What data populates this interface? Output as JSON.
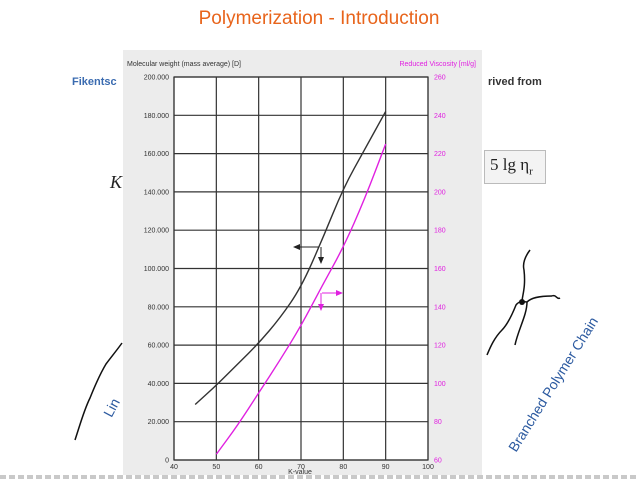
{
  "slide": {
    "title": "Polymerization - Introduction",
    "left_text_fragment": "Fikentsc",
    "right_text_fragment": "rived  from",
    "formula_left_fragment": "K",
    "formula_right_fragment": "5 lg η",
    "formula_right_subscript": "r",
    "left_diagram_label_fragment": "Lin",
    "right_diagram_label": "Branched Polymer Chain"
  },
  "colors": {
    "title": "#e8641b",
    "text_blue": "#3a6bb0",
    "molecular_weight_line": "#333333",
    "viscosity_line": "#e020e0",
    "grid": "#333333"
  },
  "chart_data": {
    "type": "line",
    "xlabel": "K-value",
    "ylabel_left": "Molecular weight (mass average) [D]",
    "ylabel_right": "Reduced Viscosity  [ml/g]",
    "xlim": [
      40,
      100
    ],
    "ylim_left": [
      0,
      200000
    ],
    "ylim_right": [
      60,
      260
    ],
    "x_ticks": [
      40,
      50,
      60,
      70,
      80,
      90,
      100
    ],
    "y_ticks_left": [
      "0",
      "20.000",
      "40.000",
      "60.000",
      "80.000",
      "100.000",
      "120.000",
      "140.000",
      "160.000",
      "180.000",
      "200.000"
    ],
    "y_ticks_right": [
      "60",
      "80",
      "100",
      "120",
      "140",
      "160",
      "180",
      "200",
      "220",
      "240",
      "260"
    ],
    "grid": true,
    "series": [
      {
        "axis": "left",
        "color": "#333333",
        "points": [
          [
            45,
            29000
          ],
          [
            50,
            39000
          ],
          [
            55,
            50000
          ],
          [
            60,
            61000
          ],
          [
            65,
            74000
          ],
          [
            70,
            90000
          ],
          [
            75,
            115000
          ],
          [
            80,
            142000
          ],
          [
            85,
            162000
          ],
          [
            90,
            182000
          ]
        ]
      },
      {
        "axis": "right",
        "color": "#e020e0",
        "points": [
          [
            50,
            63
          ],
          [
            55,
            78
          ],
          [
            60,
            95
          ],
          [
            65,
            112
          ],
          [
            70,
            130
          ],
          [
            75,
            151
          ],
          [
            80,
            171
          ],
          [
            85,
            196
          ],
          [
            90,
            225
          ]
        ]
      }
    ]
  }
}
